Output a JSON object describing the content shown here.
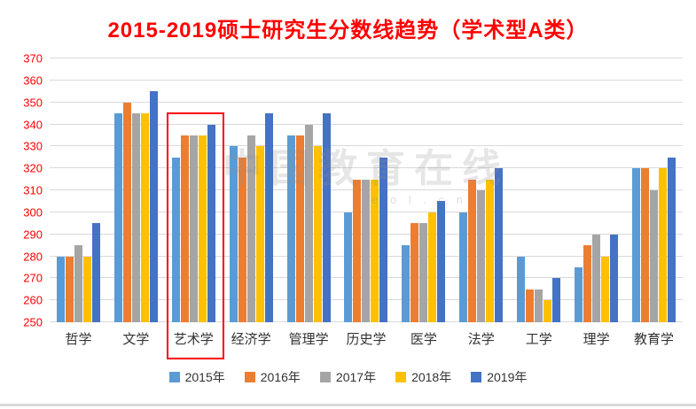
{
  "chart_data": {
    "type": "bar",
    "title": "2015-2019硕士研究生分数线趋势（学术型A类）",
    "title_color": "#ff0000",
    "categories": [
      "哲学",
      "文学",
      "艺术学",
      "经济学",
      "管理学",
      "历史学",
      "医学",
      "法学",
      "工学",
      "理学",
      "教育学"
    ],
    "series": [
      {
        "name": "2015年",
        "color": "#5B9BD5",
        "values": [
          280,
          345,
          325,
          330,
          335,
          300,
          285,
          300,
          280,
          275,
          320
        ]
      },
      {
        "name": "2016年",
        "color": "#ED7D31",
        "values": [
          280,
          350,
          335,
          325,
          335,
          315,
          295,
          315,
          265,
          285,
          320
        ]
      },
      {
        "name": "2017年",
        "color": "#A5A5A5",
        "values": [
          285,
          345,
          335,
          335,
          340,
          315,
          295,
          310,
          265,
          290,
          310
        ]
      },
      {
        "name": "2018年",
        "color": "#FFC000",
        "values": [
          280,
          345,
          335,
          330,
          330,
          315,
          300,
          315,
          260,
          280,
          320
        ]
      },
      {
        "name": "2019年",
        "color": "#4472C4",
        "values": [
          295,
          355,
          340,
          345,
          345,
          325,
          305,
          320,
          270,
          290,
          325
        ]
      }
    ],
    "ylim": [
      250,
      370
    ],
    "ytick_step": 10,
    "grid": true,
    "legend_position": "bottom",
    "highlight_category": "艺术学",
    "highlight_index": 2,
    "highlight_color": "#ff0000",
    "ytick_color": "#ff0000"
  },
  "watermark": {
    "text": "中国教育在线",
    "sub": "e o l . c n"
  }
}
